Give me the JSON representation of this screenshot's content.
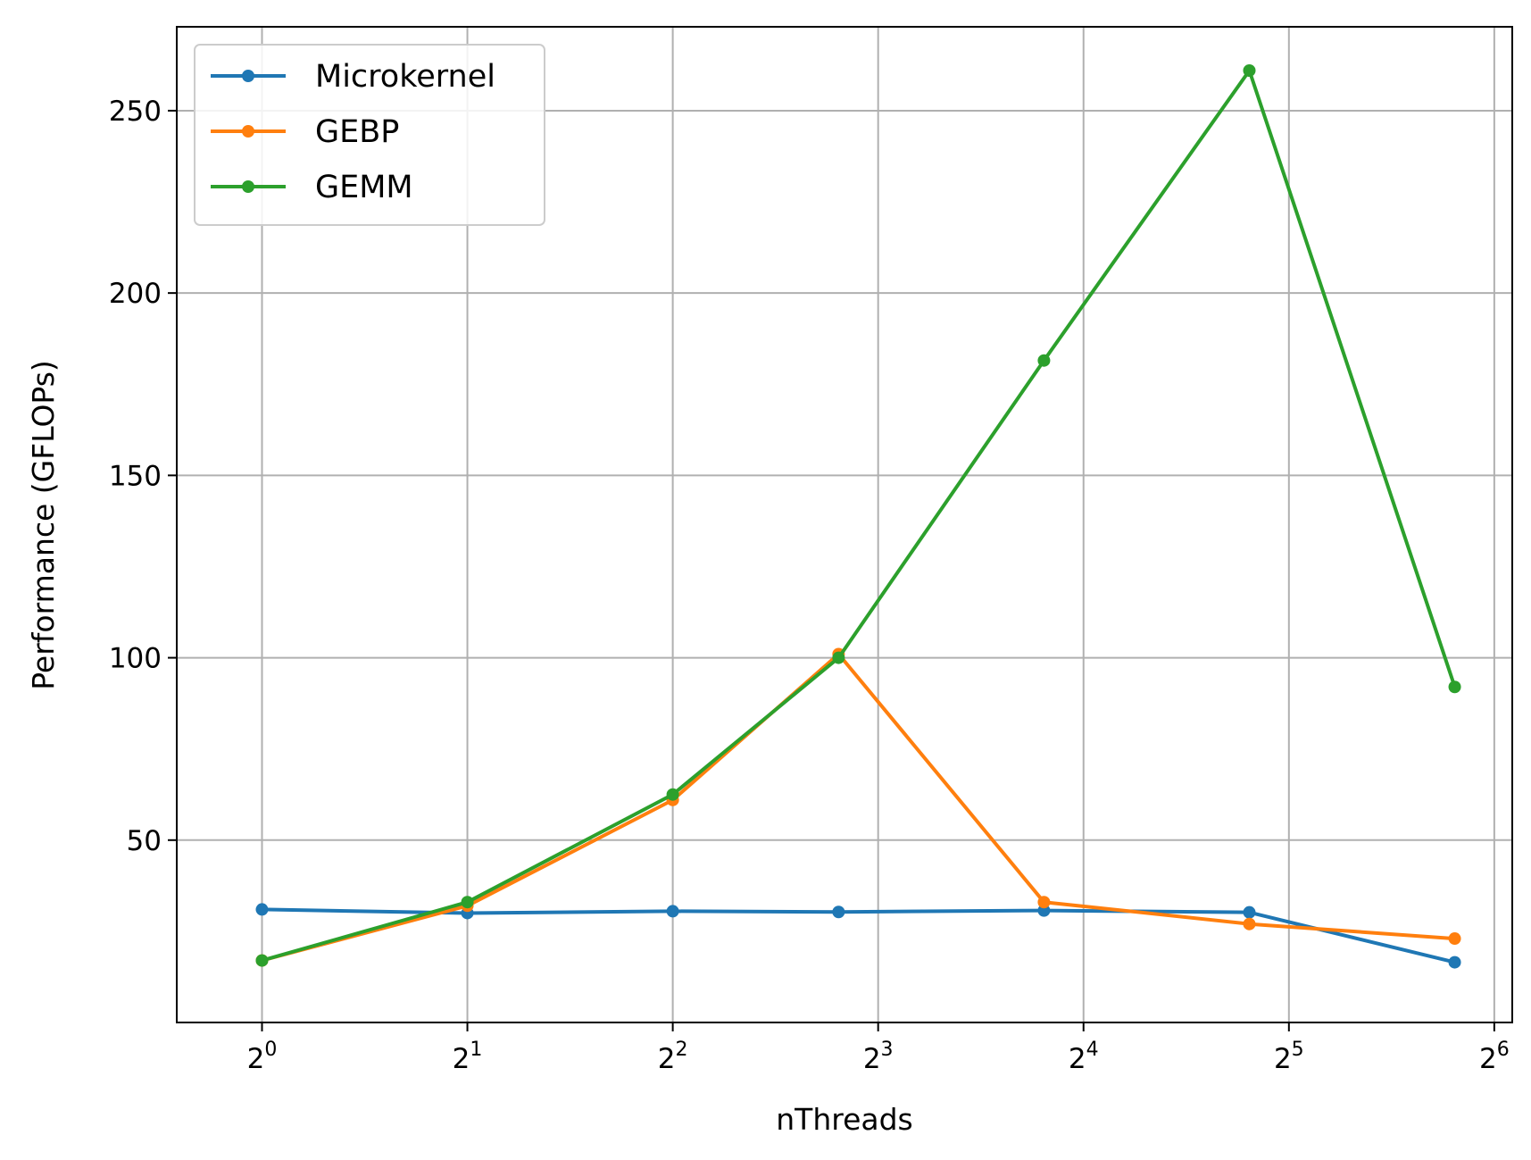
{
  "chart_data": {
    "type": "line",
    "x": [
      1,
      2,
      4,
      7,
      14,
      28,
      56
    ],
    "xscale": "log2",
    "xlim": [
      0.75,
      68
    ],
    "xticks": [
      {
        "base": "2",
        "exp": "0"
      },
      {
        "base": "2",
        "exp": "1"
      },
      {
        "base": "2",
        "exp": "2"
      },
      {
        "base": "2",
        "exp": "3"
      },
      {
        "base": "2",
        "exp": "4"
      },
      {
        "base": "2",
        "exp": "5"
      },
      {
        "base": "2",
        "exp": "6"
      }
    ],
    "xtick_values": [
      1,
      2,
      4,
      8,
      16,
      32,
      64
    ],
    "ylim": [
      0,
      273
    ],
    "yticks": [
      50,
      100,
      150,
      200,
      250
    ],
    "xlabel": "nThreads",
    "ylabel": "Performance (GFLOPs)",
    "grid": true,
    "legend_position": "top-left",
    "series": [
      {
        "name": "Microkernel",
        "color": "#1f77b4",
        "values": [
          31,
          30,
          30.5,
          30.3,
          30.7,
          30.2,
          16.5
        ]
      },
      {
        "name": "GEBP",
        "color": "#ff7f0e",
        "values": [
          17,
          32,
          61,
          101,
          33,
          27,
          23
        ]
      },
      {
        "name": "GEMM",
        "color": "#2ca02c",
        "values": [
          17,
          33,
          62.5,
          100,
          181.5,
          261,
          92
        ]
      }
    ]
  }
}
